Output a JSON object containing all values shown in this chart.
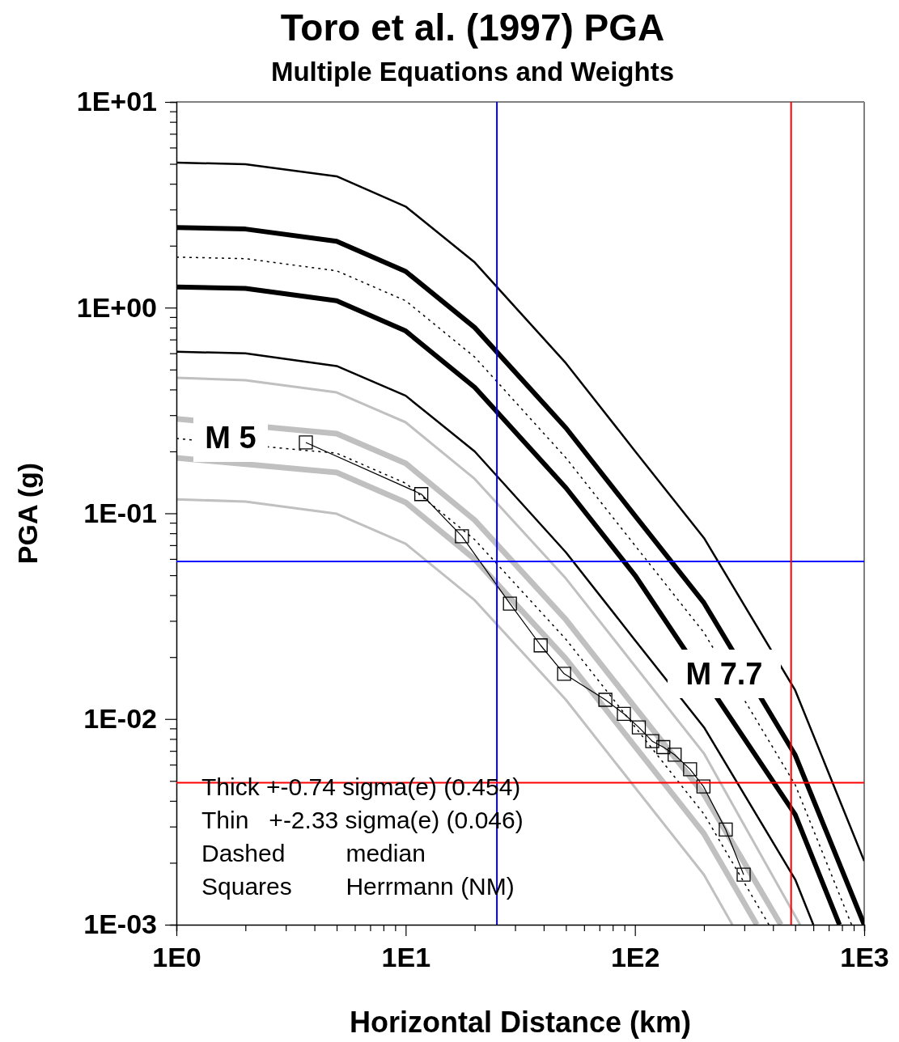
{
  "chart_data": {
    "type": "line",
    "title": "Toro et al. (1997) PGA",
    "subtitle": "Multiple Equations and Weights",
    "xlabel": "Horizontal Distance (km)",
    "ylabel": "PGA (g)",
    "log": "xy",
    "xlim": [
      1,
      1000
    ],
    "ylim": [
      0.001,
      10
    ],
    "xticks": [
      {
        "value": 1,
        "label": "1E0"
      },
      {
        "value": 2,
        "label": null
      },
      {
        "value": 3,
        "label": null
      },
      {
        "value": 4,
        "label": null
      },
      {
        "value": 5,
        "label": null
      },
      {
        "value": 6,
        "label": null
      },
      {
        "value": 7,
        "label": null
      },
      {
        "value": 8,
        "label": null
      },
      {
        "value": 9,
        "label": null
      },
      {
        "value": 10,
        "label": "1E1"
      },
      {
        "value": 20,
        "label": null
      },
      {
        "value": 30,
        "label": null
      },
      {
        "value": 40,
        "label": null
      },
      {
        "value": 50,
        "label": null
      },
      {
        "value": 60,
        "label": null
      },
      {
        "value": 70,
        "label": null
      },
      {
        "value": 80,
        "label": null
      },
      {
        "value": 90,
        "label": null
      },
      {
        "value": 100,
        "label": "1E2"
      },
      {
        "value": 200,
        "label": null
      },
      {
        "value": 300,
        "label": null
      },
      {
        "value": 400,
        "label": null
      },
      {
        "value": 500,
        "label": null
      },
      {
        "value": 600,
        "label": null
      },
      {
        "value": 700,
        "label": null
      },
      {
        "value": 800,
        "label": null
      },
      {
        "value": 900,
        "label": null
      },
      {
        "value": 1000,
        "label": "1E3"
      }
    ],
    "yticks": [
      {
        "value": 0.001,
        "label": "1E-03"
      },
      {
        "value": 0.002,
        "label": null
      },
      {
        "value": 0.003,
        "label": null
      },
      {
        "value": 0.004,
        "label": null
      },
      {
        "value": 0.005,
        "label": null
      },
      {
        "value": 0.006,
        "label": null
      },
      {
        "value": 0.007,
        "label": null
      },
      {
        "value": 0.008,
        "label": null
      },
      {
        "value": 0.009,
        "label": null
      },
      {
        "value": 0.01,
        "label": "1E-02"
      },
      {
        "value": 0.02,
        "label": null
      },
      {
        "value": 0.03,
        "label": null
      },
      {
        "value": 0.04,
        "label": null
      },
      {
        "value": 0.05,
        "label": null
      },
      {
        "value": 0.06,
        "label": null
      },
      {
        "value": 0.07,
        "label": null
      },
      {
        "value": 0.08,
        "label": null
      },
      {
        "value": 0.09,
        "label": null
      },
      {
        "value": 0.1,
        "label": "1E-01"
      },
      {
        "value": 0.2,
        "label": null
      },
      {
        "value": 0.3,
        "label": null
      },
      {
        "value": 0.4,
        "label": null
      },
      {
        "value": 0.5,
        "label": null
      },
      {
        "value": 0.6,
        "label": null
      },
      {
        "value": 0.7,
        "label": null
      },
      {
        "value": 0.8,
        "label": null
      },
      {
        "value": 0.9,
        "label": null
      },
      {
        "value": 1,
        "label": "1E+00"
      },
      {
        "value": 2,
        "label": null
      },
      {
        "value": 3,
        "label": null
      },
      {
        "value": 4,
        "label": null
      },
      {
        "value": 5,
        "label": null
      },
      {
        "value": 6,
        "label": null
      },
      {
        "value": 7,
        "label": null
      },
      {
        "value": 8,
        "label": null
      },
      {
        "value": 9,
        "label": null
      },
      {
        "value": 10,
        "label": "1E+01"
      }
    ],
    "series": [
      {
        "color": "#000000",
        "line_style": "solid",
        "marker": "none",
        "x": [
          1,
          2,
          5,
          10,
          20,
          50,
          100,
          200,
          500,
          1000
        ],
        "values": [
          5.07,
          4.98,
          4.35,
          3.1,
          1.66,
          0.537,
          0.201,
          0.0759,
          0.0138,
          0.00204
        ]
      },
      {
        "color": "#000000",
        "line_style": "solid",
        "marker": "none",
        "x": [
          1,
          2,
          5,
          10,
          20,
          50,
          100,
          200,
          500,
          1000
        ],
        "values": [
          2.45,
          2.41,
          2.1,
          1.5,
          0.8,
          0.26,
          0.0975,
          0.0367,
          0.00668,
          0.001
        ]
      },
      {
        "color": "#000000",
        "line_style": "dotted",
        "marker": "none",
        "x": [
          1,
          2,
          5,
          10,
          20,
          50,
          100,
          200,
          500,
          881
        ],
        "values": [
          1.76,
          1.73,
          1.51,
          1.08,
          0.575,
          0.186,
          0.0698,
          0.0263,
          0.00479,
          0.001
        ]
      },
      {
        "color": "#000000",
        "line_style": "solid",
        "marker": "none",
        "x": [
          1,
          2,
          5,
          10,
          20,
          50,
          100,
          200,
          500,
          780
        ],
        "values": [
          1.26,
          1.24,
          1.08,
          0.77,
          0.41,
          0.133,
          0.05,
          null,
          0.00343,
          0.001
        ]
      },
      {
        "color": "#000000",
        "line_style": "solid",
        "marker": "none",
        "x": [
          1,
          2,
          5,
          10,
          20,
          50,
          100,
          200,
          500,
          600
        ],
        "values": [
          0.61,
          0.6,
          0.52,
          0.373,
          0.2,
          0.0646,
          0.0242,
          0.00912,
          0.00166,
          0.001
        ]
      },
      {
        "color": "#c0c0c0",
        "line_style": "solid",
        "marker": "none",
        "x": [
          1,
          2,
          5,
          10,
          20,
          50,
          100,
          200,
          525
        ],
        "values": [
          0.456,
          0.444,
          0.387,
          0.277,
          0.147,
          0.0482,
          0.0181,
          0.0068,
          0.001
        ]
      },
      {
        "color": "#c0c0c0",
        "line_style": "solid",
        "marker": "none",
        "x": [
          1,
          2,
          5,
          10,
          20,
          50,
          100,
          200,
          433
        ],
        "values": [
          0.288,
          null,
          0.244,
          0.175,
          0.0927,
          0.0304,
          0.0114,
          0.0043,
          0.001
        ]
      },
      {
        "color": "#000000",
        "line_style": "dotted",
        "marker": "none",
        "x": [
          1,
          2,
          5,
          10,
          20,
          50,
          100,
          200,
          384
        ],
        "values": [
          0.231,
          null,
          0.196,
          0.14,
          0.0745,
          0.0244,
          0.00916,
          0.00345,
          0.001
        ]
      },
      {
        "color": "#c0c0c0",
        "line_style": "solid",
        "marker": "none",
        "x": [
          1,
          2,
          5,
          10,
          20,
          50,
          100,
          200,
          340
        ],
        "values": [
          0.186,
          null,
          0.158,
          0.113,
          0.0598,
          0.0196,
          0.00736,
          0.00277,
          0.001
        ]
      },
      {
        "color": "#c0c0c0",
        "line_style": "solid",
        "marker": "none",
        "x": [
          1,
          2,
          5,
          10,
          20,
          50,
          100,
          200,
          266
        ],
        "values": [
          0.117,
          0.114,
          0.0995,
          0.0711,
          0.0378,
          0.0124,
          0.00465,
          0.00175,
          0.001
        ]
      },
      {
        "color": "#000000",
        "line_style": "solid",
        "marker": "square",
        "x": [
          3.67,
          11.7,
          17.6,
          28.5,
          38.8,
          49.1,
          74.3,
          89.5,
          104,
          119,
          133,
          149,
          174,
          199,
          249,
          298
        ],
        "values": [
          0.221,
          0.124,
          0.0773,
          0.0364,
          0.0228,
          0.0166,
          0.0124,
          0.0106,
          0.0091,
          0.0078,
          0.0073,
          0.0067,
          0.0057,
          0.0047,
          0.0029,
          0.00175
        ]
      }
    ],
    "ref_lines": [
      {
        "axis": "y",
        "value": 0.0583,
        "color": "#0000ff"
      },
      {
        "axis": "x",
        "value": 25,
        "color": "#0000ff"
      },
      {
        "axis": "y",
        "value": 0.0049,
        "color": "#ff0000"
      },
      {
        "axis": "x",
        "value": 480,
        "color": "#ff0000"
      }
    ],
    "annotations": [
      "M 5",
      "M 7.7",
      "Thick +-0.74 sigma(e) (0.454)",
      "Thin   +-2.33 sigma(e) (0.046)",
      "Dashed         median",
      "Squares        Herrmann (NM)"
    ]
  }
}
